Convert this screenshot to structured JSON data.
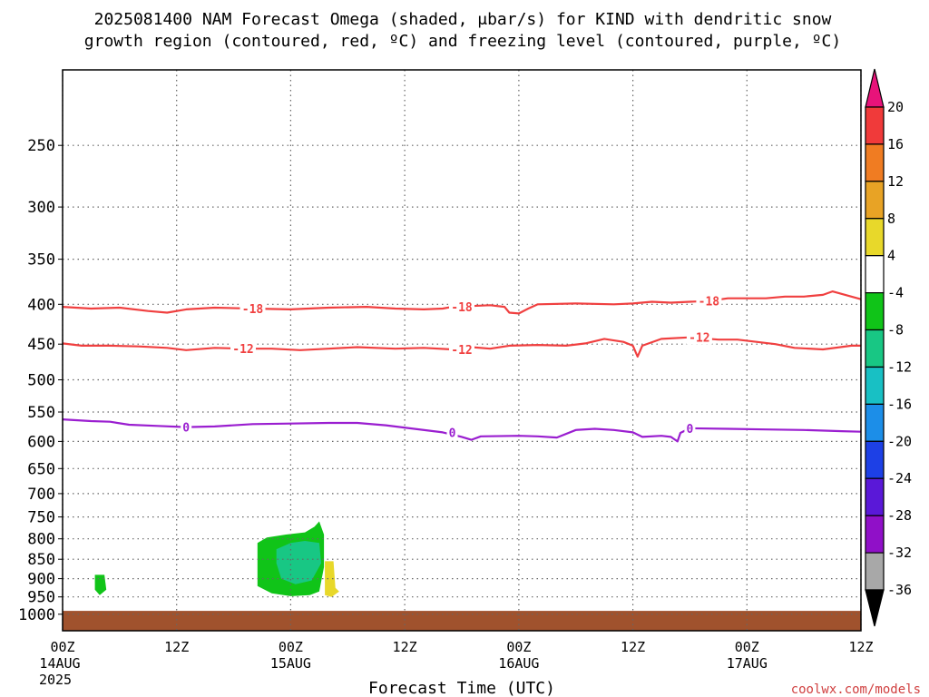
{
  "chart_data": {
    "type": "heatmap",
    "title_line1": "2025081400 NAM Forecast Omega (shaded, μbar/s) for KIND with dendritic snow",
    "title_line2": "growth region (contoured, red, ºC) and freezing level (contoured, purple, ºC)",
    "xlabel": "Forecast Time (UTC)",
    "credit": "coolwx.com/models",
    "x_range_hours": [
      0,
      84
    ],
    "x_ticks": [
      {
        "h": 0,
        "label": "00Z",
        "sub": "14AUG",
        "sub2": "2025"
      },
      {
        "h": 12,
        "label": "12Z",
        "sub": "",
        "sub2": ""
      },
      {
        "h": 24,
        "label": "00Z",
        "sub": "15AUG",
        "sub2": ""
      },
      {
        "h": 36,
        "label": "12Z",
        "sub": "",
        "sub2": ""
      },
      {
        "h": 48,
        "label": "00Z",
        "sub": "16AUG",
        "sub2": ""
      },
      {
        "h": 60,
        "label": "12Z",
        "sub": "",
        "sub2": ""
      },
      {
        "h": 72,
        "label": "00Z",
        "sub": "17AUG",
        "sub2": ""
      },
      {
        "h": 84,
        "label": "12Z",
        "sub": "",
        "sub2": ""
      }
    ],
    "y_scale": "log-pressure",
    "y_range_hpa": [
      1050,
      200
    ],
    "y_ticks": [
      250,
      300,
      350,
      400,
      450,
      500,
      550,
      600,
      650,
      700,
      750,
      800,
      850,
      900,
      950,
      1000
    ],
    "grid": true,
    "colorbar": {
      "labels": [
        "20",
        "16",
        "12",
        "8",
        "4",
        "-4",
        "-8",
        "-12",
        "-16",
        "-20",
        "-24",
        "-28",
        "-32",
        "-36"
      ],
      "top_arrow_color": "#e8137a",
      "bottom_arrow_color": "#000000",
      "colors": [
        "#f03a3a",
        "#f07c22",
        "#e8a325",
        "#e8d82a",
        "#ffffff",
        "#10c418",
        "#18c784",
        "#18c0c4",
        "#1c8ee8",
        "#1d40e6",
        "#5a18d8",
        "#9010c8",
        "#a8a8a8"
      ]
    },
    "contours": [
      {
        "level": -18,
        "label": "-18",
        "color": "#f04040",
        "points": [
          [
            0,
            403
          ],
          [
            3,
            405
          ],
          [
            6,
            404
          ],
          [
            9,
            408
          ],
          [
            11,
            410
          ],
          [
            13,
            406
          ],
          [
            16,
            404
          ],
          [
            20,
            405
          ],
          [
            24,
            406
          ],
          [
            28,
            404
          ],
          [
            32,
            403
          ],
          [
            35,
            405
          ],
          [
            38,
            406
          ],
          [
            40,
            405
          ],
          [
            41,
            403
          ],
          [
            43,
            402
          ],
          [
            45,
            401
          ],
          [
            46.5,
            403
          ],
          [
            47,
            410
          ],
          [
            48,
            411
          ],
          [
            49,
            405
          ],
          [
            50,
            400
          ],
          [
            54,
            399
          ],
          [
            58,
            400
          ],
          [
            60,
            399
          ],
          [
            62,
            397
          ],
          [
            64,
            398
          ],
          [
            66,
            397
          ],
          [
            68,
            396
          ],
          [
            70,
            393
          ],
          [
            72,
            393
          ],
          [
            74,
            393
          ],
          [
            76,
            391
          ],
          [
            78,
            391
          ],
          [
            80,
            389
          ],
          [
            81,
            385
          ],
          [
            83,
            391
          ],
          [
            84,
            394
          ]
        ],
        "labels_h": [
          20,
          42,
          68
        ]
      },
      {
        "level": -12,
        "label": "-12",
        "color": "#f04040",
        "points": [
          [
            0,
            449
          ],
          [
            2,
            452
          ],
          [
            5,
            452
          ],
          [
            8,
            453
          ],
          [
            11,
            455
          ],
          [
            13,
            458
          ],
          [
            16,
            455
          ],
          [
            19,
            456
          ],
          [
            22,
            456
          ],
          [
            25,
            458
          ],
          [
            28,
            456
          ],
          [
            31,
            454
          ],
          [
            35,
            456
          ],
          [
            38,
            455
          ],
          [
            41,
            457
          ],
          [
            43,
            454
          ],
          [
            45,
            456
          ],
          [
            47,
            452
          ],
          [
            50,
            451
          ],
          [
            53,
            452
          ],
          [
            55,
            449
          ],
          [
            57,
            443
          ],
          [
            59,
            447
          ],
          [
            60,
            452
          ],
          [
            60.5,
            467
          ],
          [
            61,
            452
          ],
          [
            63,
            443
          ],
          [
            66,
            441
          ],
          [
            69,
            444
          ],
          [
            71,
            444
          ],
          [
            73,
            447
          ],
          [
            75,
            450
          ],
          [
            77,
            455
          ],
          [
            80,
            457
          ],
          [
            83,
            452
          ],
          [
            84,
            452
          ]
        ],
        "labels_h": [
          19,
          42,
          67
        ]
      },
      {
        "level": 0,
        "label": "0",
        "color": "#9a1ed0",
        "points": [
          [
            0,
            562
          ],
          [
            3,
            565
          ],
          [
            5,
            566
          ],
          [
            7,
            571
          ],
          [
            10,
            573
          ],
          [
            13,
            575
          ],
          [
            16,
            574
          ],
          [
            20,
            570
          ],
          [
            24,
            569
          ],
          [
            28,
            568
          ],
          [
            31,
            568
          ],
          [
            34,
            572
          ],
          [
            37,
            578
          ],
          [
            40,
            584
          ],
          [
            42,
            592
          ],
          [
            43,
            597
          ],
          [
            44,
            591
          ],
          [
            48,
            590
          ],
          [
            50,
            591
          ],
          [
            52,
            593
          ],
          [
            54,
            580
          ],
          [
            56,
            578
          ],
          [
            58,
            580
          ],
          [
            60,
            584
          ],
          [
            61,
            592
          ],
          [
            63,
            590
          ],
          [
            64,
            592
          ],
          [
            64.7,
            600
          ],
          [
            65,
            585
          ],
          [
            66,
            577
          ],
          [
            70,
            578
          ],
          [
            74,
            579
          ],
          [
            78,
            580
          ],
          [
            82,
            582
          ],
          [
            84,
            583
          ]
        ],
        "labels_h": [
          13,
          41,
          66
        ]
      }
    ],
    "shaded": [
      {
        "value_range": [
          -8,
          -4
        ],
        "color": "#10c418",
        "polygon": [
          [
            20.5,
            810
          ],
          [
            21.5,
            797
          ],
          [
            23.5,
            790
          ],
          [
            25.5,
            785
          ],
          [
            26.5,
            772
          ],
          [
            27,
            760
          ],
          [
            27.5,
            790
          ],
          [
            27.5,
            870
          ],
          [
            27,
            935
          ],
          [
            26,
            945
          ],
          [
            24,
            948
          ],
          [
            22,
            940
          ],
          [
            20.5,
            920
          ],
          [
            20.5,
            850
          ]
        ]
      },
      {
        "value_range": [
          -12,
          -8
        ],
        "color": "#18c784",
        "polygon": [
          [
            22.5,
            825
          ],
          [
            24,
            810
          ],
          [
            25.5,
            805
          ],
          [
            27,
            810
          ],
          [
            27.2,
            860
          ],
          [
            26.2,
            905
          ],
          [
            24.5,
            915
          ],
          [
            23,
            900
          ],
          [
            22.5,
            860
          ]
        ]
      },
      {
        "value_range": [
          -8,
          -4
        ],
        "color": "#10c418",
        "polygon": [
          [
            3.4,
            890
          ],
          [
            4.4,
            890
          ],
          [
            4.6,
            930
          ],
          [
            3.9,
            945
          ],
          [
            3.4,
            930
          ]
        ]
      },
      {
        "value_range": [
          4,
          8
        ],
        "color": "#e8d82a",
        "polygon": [
          [
            27.6,
            855
          ],
          [
            28.5,
            855
          ],
          [
            28.7,
            925
          ],
          [
            29.1,
            935
          ],
          [
            28.3,
            950
          ],
          [
            27.6,
            945
          ]
        ]
      }
    ],
    "ground": {
      "pressure_hpa": 990,
      "color": "#a0522d"
    }
  }
}
